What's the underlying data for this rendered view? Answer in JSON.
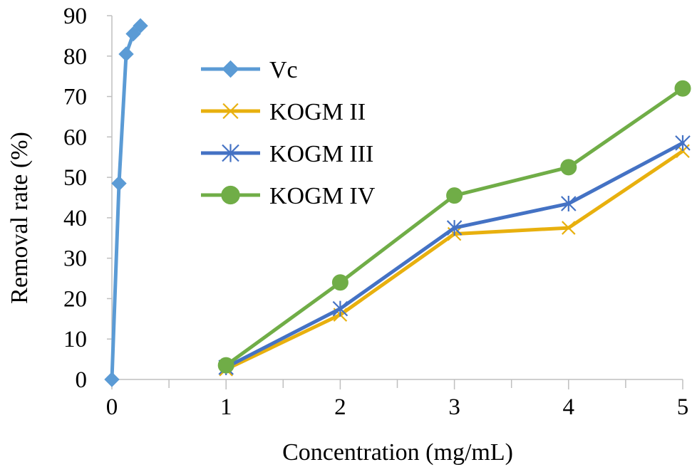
{
  "chart_data": {
    "type": "line",
    "title": "",
    "xlabel": "Concentration (mg/mL)",
    "ylabel": "Removal rate (%)",
    "xlim": [
      0,
      5
    ],
    "ylim": [
      0,
      90
    ],
    "x_ticks": [
      "0",
      "1",
      "2",
      "3",
      "4",
      "5"
    ],
    "y_ticks": [
      "0",
      "10",
      "20",
      "30",
      "40",
      "50",
      "60",
      "70",
      "80",
      "90"
    ],
    "grid": false,
    "legend_position": "top-center",
    "series": [
      {
        "name": "Vc",
        "color": "#5B9BD5",
        "marker": "diamond",
        "x": [
          0,
          0.0625,
          0.125,
          0.1875,
          0.25
        ],
        "y": [
          0,
          48.5,
          80.5,
          85.5,
          87.5
        ]
      },
      {
        "name": "KOGM II",
        "color": "#E8B00E",
        "marker": "x",
        "x": [
          1,
          2,
          3,
          4,
          5
        ],
        "y": [
          2.5,
          16,
          36,
          37.5,
          56.5
        ]
      },
      {
        "name": "KOGM III",
        "color": "#4472C4",
        "marker": "star",
        "x": [
          1,
          2,
          3,
          4,
          5
        ],
        "y": [
          3,
          17.5,
          37.5,
          43.5,
          58.5
        ]
      },
      {
        "name": "KOGM IV",
        "color": "#70AD47",
        "marker": "circle",
        "x": [
          1,
          2,
          3,
          4,
          5
        ],
        "y": [
          3.5,
          24,
          45.5,
          52.5,
          72
        ]
      }
    ]
  }
}
